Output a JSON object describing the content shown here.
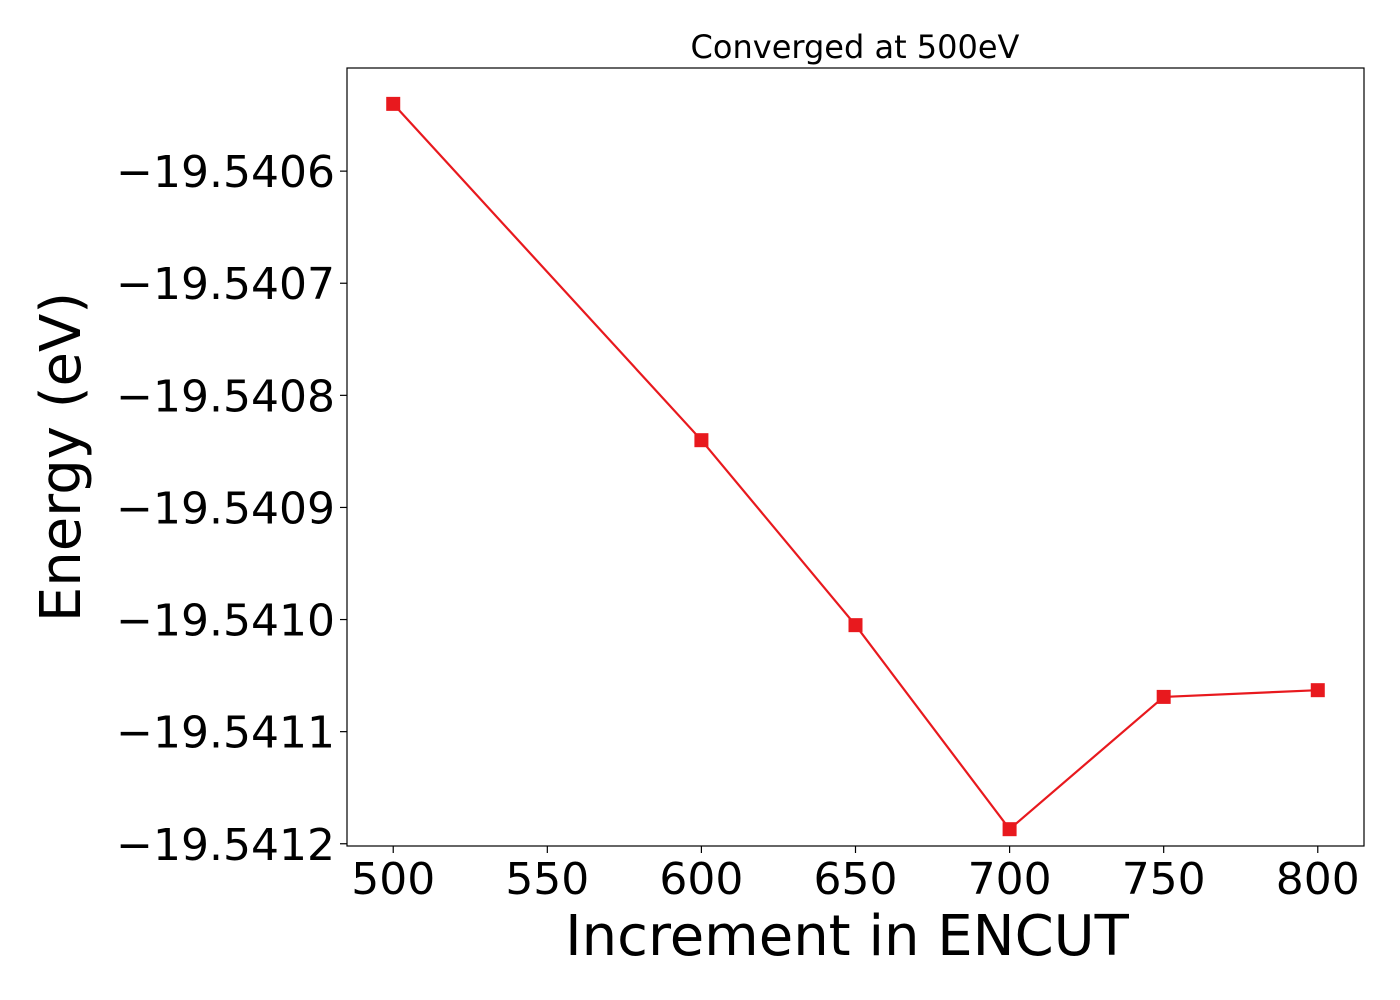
{
  "chart_data": {
    "type": "line",
    "title": "Converged at 500eV",
    "xlabel": "Increment in ENCUT",
    "ylabel": "Energy (eV)",
    "x": [
      500,
      600,
      650,
      700,
      750,
      800
    ],
    "series": [
      {
        "values": [
          -19.54054,
          -19.54084,
          -19.541005,
          -19.541187,
          -19.541069,
          -19.541063
        ],
        "color": "#e8191e",
        "marker": "square"
      }
    ],
    "x_ticks": [
      500,
      550,
      600,
      650,
      700,
      750,
      800
    ],
    "y_ticks": [
      -19.5406,
      -19.5407,
      -19.5408,
      -19.5409,
      -19.541,
      -19.5411,
      -19.5412
    ],
    "x_tick_labels": [
      "500",
      "550",
      "600",
      "650",
      "700",
      "750",
      "800"
    ],
    "y_tick_labels": [
      "−19.5406",
      "−19.5407",
      "−19.5408",
      "−19.5409",
      "−19.5410",
      "−19.5411",
      "−19.5412"
    ],
    "xlim": [
      485,
      815
    ],
    "ylim": [
      -19.541202,
      -19.540508
    ],
    "grid": false,
    "legend": "none"
  }
}
